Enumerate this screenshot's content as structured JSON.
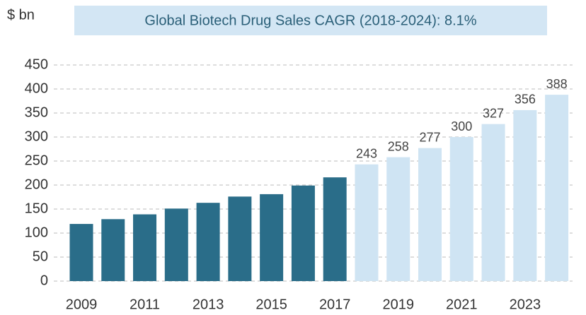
{
  "chart_data": {
    "type": "bar",
    "title": "Global Biotech Drug Sales CAGR (2018-2024): 8.1%",
    "y_label": "$ bn",
    "categories": [
      "2009",
      null,
      "2011",
      null,
      "2013",
      null,
      "2015",
      null,
      "2017",
      null,
      "2019",
      null,
      "2021",
      null,
      "2023",
      null
    ],
    "values": [
      119,
      129,
      139,
      151,
      163,
      176,
      181,
      199,
      216,
      243,
      258,
      277,
      300,
      327,
      356,
      388
    ],
    "value_labels": [
      null,
      null,
      null,
      null,
      null,
      null,
      null,
      null,
      null,
      "243",
      "258",
      "277",
      "300",
      "327",
      "356",
      "388"
    ],
    "colors": [
      "#2a6d89",
      "#2a6d89",
      "#2a6d89",
      "#2a6d89",
      "#2a6d89",
      "#2a6d89",
      "#2a6d89",
      "#2a6d89",
      "#2a6d89",
      "#cfe4f3",
      "#cfe4f3",
      "#cfe4f3",
      "#cfe4f3",
      "#cfe4f3",
      "#cfe4f3",
      "#cfe4f3"
    ],
    "ylim": [
      0,
      450
    ],
    "yticks": [
      0,
      50,
      100,
      150,
      200,
      250,
      300,
      350,
      400,
      450
    ],
    "grid": true
  }
}
